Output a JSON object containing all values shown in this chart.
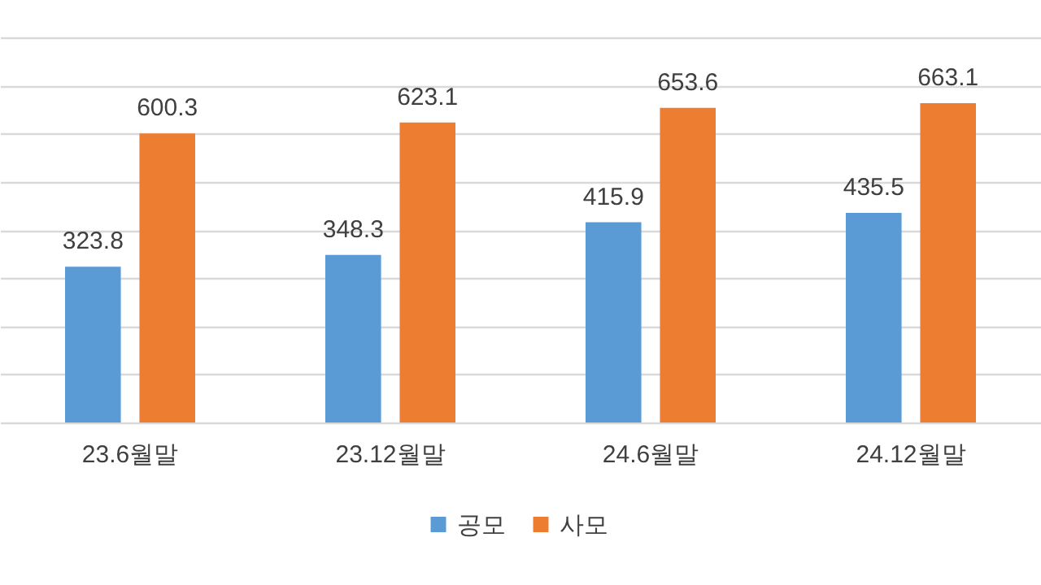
{
  "chart_data": {
    "type": "bar",
    "categories": [
      "23.6월말",
      "23.12월말",
      "24.6월말",
      "24.12월말"
    ],
    "series": [
      {
        "name": "공모",
        "color": "#5b9bd5",
        "values": [
          323.8,
          348.3,
          415.9,
          435.5
        ]
      },
      {
        "name": "사모",
        "color": "#ed7d31",
        "values": [
          600.3,
          623.1,
          653.6,
          663.1
        ]
      }
    ],
    "ylim": [
      0,
      800
    ],
    "yticks": [
      {
        "value": 0,
        "label": null
      },
      {
        "value": 100,
        "label": null
      },
      {
        "value": 200,
        "label": null
      },
      {
        "value": 300,
        "label": null
      },
      {
        "value": 400,
        "label": null
      },
      {
        "value": 500,
        "label": null
      },
      {
        "value": 600,
        "label": null
      },
      {
        "value": 700,
        "label": null
      },
      {
        "value": 800,
        "label": null
      }
    ],
    "grid": "y",
    "tick_labels": "x",
    "data_labels": true,
    "legend": "bottom"
  }
}
